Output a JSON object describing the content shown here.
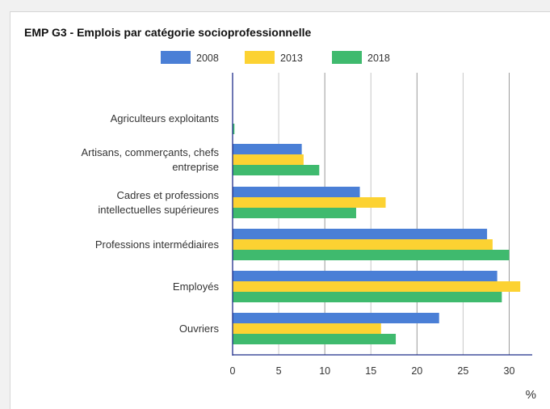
{
  "title": "EMP G3 - Emplois par catégorie socioprofessionnelle",
  "unit": "%",
  "chart_data": {
    "type": "bar",
    "orientation": "horizontal",
    "categories": [
      [
        "Agriculteurs exploitants"
      ],
      [
        "Artisans, commerçants, chefs",
        "entreprise"
      ],
      [
        "Cadres et professions",
        "intellectuelles supérieures"
      ],
      [
        "Professions intermédiaires"
      ],
      [
        "Employés"
      ],
      [
        "Ouvriers"
      ]
    ],
    "series": [
      {
        "name": "2008",
        "color": "#4a7fd6",
        "values": [
          0,
          7.5,
          13.8,
          27.6,
          28.7,
          22.4
        ]
      },
      {
        "name": "2013",
        "color": "#fcd232",
        "values": [
          0,
          7.7,
          16.6,
          28.2,
          31.2,
          16.1
        ]
      },
      {
        "name": "2018",
        "color": "#3fba6e",
        "values": [
          0.2,
          9.4,
          13.4,
          30.0,
          29.2,
          17.7
        ]
      }
    ],
    "xlim": [
      0,
      32.5
    ],
    "xticks": [
      "0",
      "5",
      "10",
      "15",
      "20",
      "25",
      "30"
    ],
    "legend_position": "top",
    "grid": true
  }
}
